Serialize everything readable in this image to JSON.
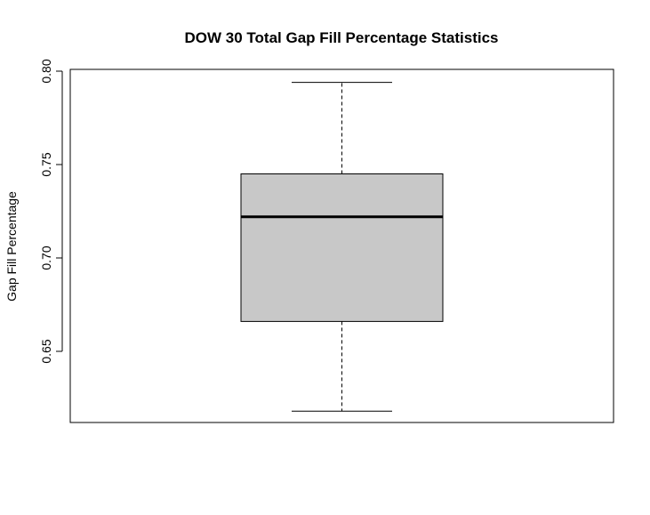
{
  "chart_data": {
    "type": "boxplot",
    "title": "DOW 30 Total Gap Fill Percentage Statistics",
    "xlabel": "",
    "ylabel": "Gap Fill Percentage",
    "ylim": [
      0.615,
      0.8
    ],
    "yticks": [
      0.65,
      0.7,
      0.75,
      0.8
    ],
    "ytick_labels": [
      "0.65",
      "0.70",
      "0.75",
      "0.80"
    ],
    "box": {
      "whisker_low": 0.618,
      "q1": 0.666,
      "median": 0.722,
      "q3": 0.745,
      "whisker_high": 0.794
    },
    "box_fill": "#c8c8c8",
    "line_color": "#000000",
    "grid": false
  }
}
